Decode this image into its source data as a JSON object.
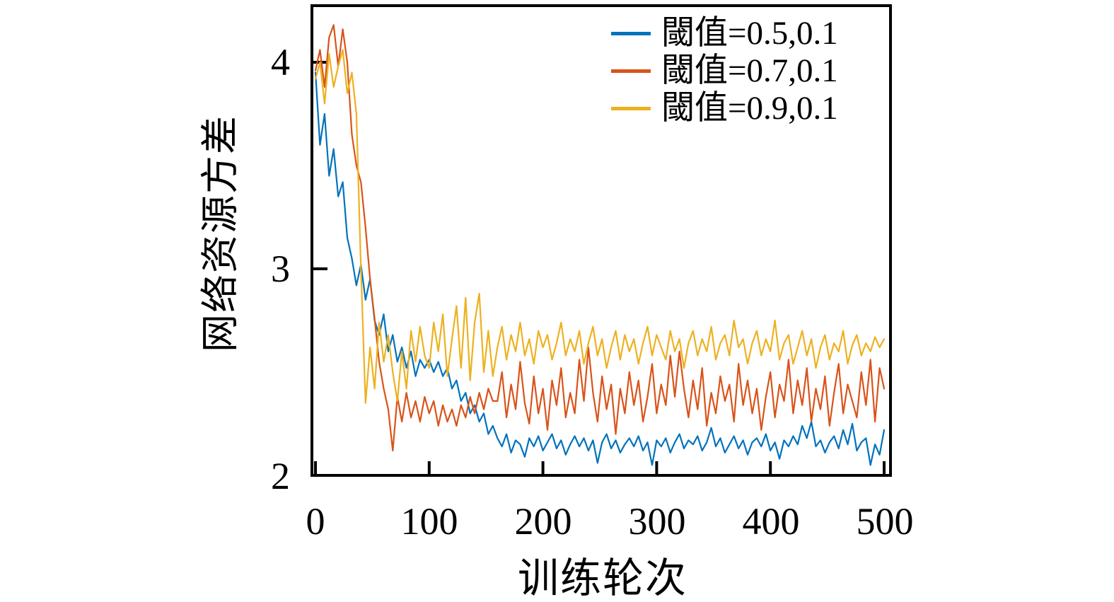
{
  "chart_data": {
    "type": "line",
    "title": "",
    "xlabel": "训练轮次",
    "ylabel": "网络资源方差",
    "grid": false,
    "legend_position": "top-right-inside",
    "axis_color": "#000000",
    "background_color": "#ffffff",
    "xlim": [
      0,
      500
    ],
    "ylim": [
      2,
      4.274
    ],
    "x_ticks": [
      0,
      100,
      200,
      300,
      400,
      500
    ],
    "x_tick_labels": [
      "0",
      "100",
      "200",
      "300",
      "400",
      "500"
    ],
    "y_ticks": [
      2,
      3,
      4
    ],
    "y_tick_labels": [
      "2",
      "3",
      "4"
    ],
    "x": [
      0,
      4,
      8,
      12,
      16,
      20,
      24,
      28,
      32,
      36,
      40,
      44,
      48,
      52,
      56,
      60,
      64,
      68,
      72,
      76,
      80,
      84,
      88,
      92,
      96,
      100,
      104,
      108,
      112,
      116,
      120,
      124,
      128,
      132,
      136,
      140,
      144,
      148,
      152,
      156,
      160,
      164,
      168,
      172,
      176,
      180,
      184,
      188,
      192,
      196,
      200,
      204,
      208,
      212,
      216,
      220,
      224,
      228,
      232,
      236,
      240,
      244,
      248,
      252,
      256,
      260,
      264,
      268,
      272,
      276,
      280,
      284,
      288,
      292,
      296,
      300,
      304,
      308,
      312,
      316,
      320,
      324,
      328,
      332,
      336,
      340,
      344,
      348,
      352,
      356,
      360,
      364,
      368,
      372,
      376,
      380,
      384,
      388,
      392,
      396,
      400,
      404,
      408,
      412,
      416,
      420,
      424,
      428,
      432,
      436,
      440,
      444,
      448,
      452,
      456,
      460,
      464,
      468,
      472,
      476,
      480,
      484,
      488,
      492,
      496,
      500
    ],
    "series": [
      {
        "name": "閾值=0.5,0.1",
        "color": "#0072BD",
        "values": [
          3.95,
          3.6,
          3.75,
          3.45,
          3.58,
          3.35,
          3.42,
          3.15,
          3.05,
          2.92,
          3.02,
          2.85,
          2.95,
          2.75,
          2.68,
          2.78,
          2.6,
          2.68,
          2.55,
          2.62,
          2.52,
          2.6,
          2.48,
          2.56,
          2.52,
          2.56,
          2.5,
          2.55,
          2.48,
          2.52,
          2.42,
          2.46,
          2.36,
          2.4,
          2.3,
          2.34,
          2.26,
          2.3,
          2.2,
          2.24,
          2.18,
          2.14,
          2.2,
          2.11,
          2.17,
          2.15,
          2.09,
          2.18,
          2.14,
          2.19,
          2.12,
          2.16,
          2.2,
          2.13,
          2.17,
          2.1,
          2.15,
          2.19,
          2.14,
          2.18,
          2.12,
          2.17,
          2.06,
          2.16,
          2.2,
          2.13,
          2.17,
          2.11,
          2.15,
          2.18,
          2.14,
          2.19,
          2.12,
          2.16,
          2.05,
          2.17,
          2.14,
          2.18,
          2.11,
          2.16,
          2.2,
          2.13,
          2.17,
          2.15,
          2.19,
          2.12,
          2.16,
          2.23,
          2.14,
          2.18,
          2.11,
          2.15,
          2.19,
          2.13,
          2.17,
          2.1,
          2.16,
          2.18,
          2.14,
          2.2,
          2.12,
          2.16,
          2.08,
          2.17,
          2.14,
          2.19,
          2.15,
          2.24,
          2.18,
          2.26,
          2.14,
          2.17,
          2.11,
          2.16,
          2.19,
          2.13,
          2.22,
          2.15,
          2.25,
          2.12,
          2.16,
          2.18,
          2.05,
          2.15,
          2.1,
          2.22
        ]
      },
      {
        "name": "閾值=0.7,0.1",
        "color": "#D95319",
        "values": [
          3.96,
          4.06,
          3.88,
          4.12,
          4.18,
          3.98,
          4.16,
          4.0,
          3.65,
          3.5,
          3.42,
          3.2,
          2.95,
          2.76,
          2.55,
          2.42,
          2.32,
          2.12,
          2.38,
          2.26,
          2.4,
          2.28,
          2.36,
          2.26,
          2.38,
          2.3,
          2.36,
          2.24,
          2.34,
          2.26,
          2.32,
          2.24,
          2.34,
          2.28,
          2.38,
          2.3,
          2.4,
          2.32,
          2.42,
          2.36,
          2.36,
          2.5,
          2.28,
          2.44,
          2.32,
          2.55,
          2.35,
          2.25,
          2.48,
          2.3,
          2.42,
          2.22,
          2.46,
          2.34,
          2.52,
          2.28,
          2.4,
          2.3,
          2.56,
          2.36,
          2.62,
          2.4,
          2.26,
          2.48,
          2.32,
          2.44,
          2.2,
          2.42,
          2.3,
          2.5,
          2.34,
          2.46,
          2.26,
          2.38,
          2.54,
          2.3,
          2.44,
          2.34,
          2.58,
          2.38,
          2.6,
          2.42,
          2.28,
          2.46,
          2.32,
          2.52,
          2.24,
          2.4,
          2.3,
          2.48,
          2.36,
          2.44,
          2.26,
          2.54,
          2.34,
          2.46,
          2.3,
          2.42,
          2.22,
          2.38,
          2.5,
          2.28,
          2.44,
          2.36,
          2.56,
          2.3,
          2.46,
          2.34,
          2.52,
          2.26,
          2.42,
          2.32,
          2.48,
          2.24,
          2.4,
          2.54,
          2.3,
          2.44,
          2.36,
          2.28,
          2.5,
          2.34,
          2.56,
          2.26,
          2.52,
          2.42
        ]
      },
      {
        "name": "閾值=0.9,0.1",
        "color": "#EDB120",
        "values": [
          3.92,
          4.0,
          3.8,
          4.04,
          3.88,
          3.98,
          4.06,
          3.85,
          3.95,
          3.75,
          3.0,
          2.35,
          2.62,
          2.42,
          2.74,
          2.55,
          2.68,
          2.5,
          2.36,
          2.6,
          2.42,
          2.7,
          2.55,
          2.72,
          2.58,
          2.52,
          2.74,
          2.6,
          2.78,
          2.48,
          2.66,
          2.82,
          2.52,
          2.86,
          2.46,
          2.74,
          2.88,
          2.5,
          2.7,
          2.48,
          2.62,
          2.72,
          2.56,
          2.68,
          2.6,
          2.74,
          2.58,
          2.66,
          2.54,
          2.7,
          2.62,
          2.68,
          2.56,
          2.64,
          2.74,
          2.58,
          2.66,
          2.6,
          2.7,
          2.54,
          2.64,
          2.72,
          2.58,
          2.66,
          2.52,
          2.62,
          2.7,
          2.56,
          2.68,
          2.6,
          2.66,
          2.54,
          2.64,
          2.72,
          2.58,
          2.68,
          2.62,
          2.56,
          2.7,
          2.6,
          2.66,
          2.52,
          2.64,
          2.7,
          2.58,
          2.66,
          2.6,
          2.72,
          2.56,
          2.64,
          2.68,
          2.58,
          2.75,
          2.62,
          2.66,
          2.54,
          2.64,
          2.7,
          2.58,
          2.66,
          2.6,
          2.75,
          2.56,
          2.64,
          2.68,
          2.54,
          2.62,
          2.7,
          2.58,
          2.66,
          2.52,
          2.62,
          2.68,
          2.56,
          2.64,
          2.6,
          2.7,
          2.54,
          2.63,
          2.68,
          2.58,
          2.64,
          2.6,
          2.67,
          2.62,
          2.66
        ]
      }
    ]
  }
}
